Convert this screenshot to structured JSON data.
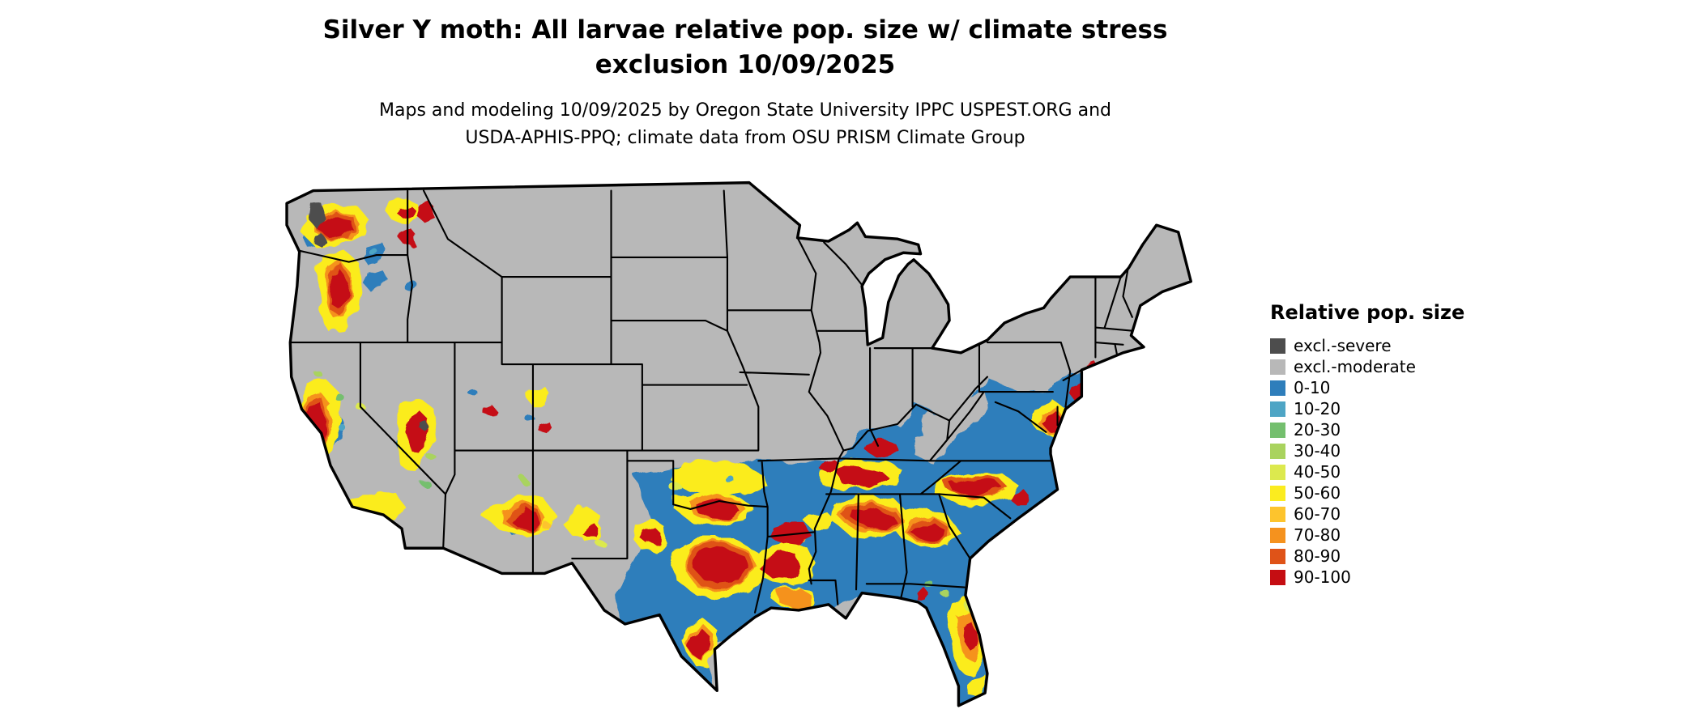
{
  "title": {
    "line1": "Silver Y moth: All larvae relative pop. size w/ climate stress",
    "line2": "exclusion 10/09/2025"
  },
  "subtitle": {
    "line1": "Maps and modeling 10/09/2025 by Oregon State University IPPC USPEST.ORG and",
    "line2": "USDA-APHIS-PPQ; climate data from OSU PRISM Climate Group"
  },
  "legend": {
    "title": "Relative pop. size",
    "entries": [
      {
        "label": "excl.-severe",
        "key": "excl-severe",
        "color": "#4D4D4D"
      },
      {
        "label": "excl.-moderate",
        "key": "excl-moderate",
        "color": "#B8B8B8"
      },
      {
        "label": "0-10",
        "key": "r0-10",
        "color": "#2E7EBB"
      },
      {
        "label": "10-20",
        "key": "r10-20",
        "color": "#4EA5C5"
      },
      {
        "label": "20-30",
        "key": "r20-30",
        "color": "#74BF6E"
      },
      {
        "label": "30-40",
        "key": "r30-40",
        "color": "#A9D35E"
      },
      {
        "label": "40-50",
        "key": "r40-50",
        "color": "#DCE94E"
      },
      {
        "label": "50-60",
        "key": "r50-60",
        "color": "#FBEC1F"
      },
      {
        "label": "60-70",
        "key": "r60-70",
        "color": "#FDC42D"
      },
      {
        "label": "70-80",
        "key": "r70-80",
        "color": "#F5921E"
      },
      {
        "label": "80-90",
        "key": "r80-90",
        "color": "#DF5318"
      },
      {
        "label": "90-100",
        "key": "r90-100",
        "color": "#C50D12"
      }
    ]
  },
  "map": {
    "region": "Contiguous United States",
    "background_color": "#FFFFFF",
    "state_border_color": "#000000",
    "base_class": "excl.-moderate",
    "regions": [
      {
        "area": "Northern tier and Midwest (E WA interior, MT, WY, ND, SD, NE, KS, MN, IA, WI, MI, IL, IN, OH, PA, NY, New England)",
        "value": "excl.-moderate (gray)"
      },
      {
        "area": "Puget Sound / NW Washington",
        "value": "excl.-severe patches"
      },
      {
        "area": "Western WA, OR Cascades, N Idaho",
        "value": "mottled 50-100 with 0-10 patches"
      },
      {
        "area": "California coast ranges and Sierra foothills",
        "value": "mottled 50-100 with 0-10 patches"
      },
      {
        "area": "Great Basin NV/UT",
        "value": "mostly excl.-moderate with scattered 40-100 specks"
      },
      {
        "area": "Arizona Mogollon Rim and NM highlands",
        "value": "scattered 50-100"
      },
      {
        "area": "Oklahoma and central/east Texas",
        "value": "large 80-100 masses mixed with 50-60 and 0-10"
      },
      {
        "area": "South Texas / Rio Grande",
        "value": "50-100 patches on 0-10"
      },
      {
        "area": "Lower Mississippi valley, TN, AL, MS, GA",
        "value": "0-10 base with large 80-100 blobs"
      },
      {
        "area": "Carolinas and Virginia piedmont",
        "value": "0-10 with 80-100 bands"
      },
      {
        "area": "Appalachians (WV, E KY)",
        "value": "excl.-moderate (gray)"
      },
      {
        "area": "Mid-Atlantic coast (Delmarva, NJ, around NYC)",
        "value": "80-100 coastal patches"
      },
      {
        "area": "Florida",
        "value": "0-10 with 40-80 center ridge"
      }
    ]
  }
}
